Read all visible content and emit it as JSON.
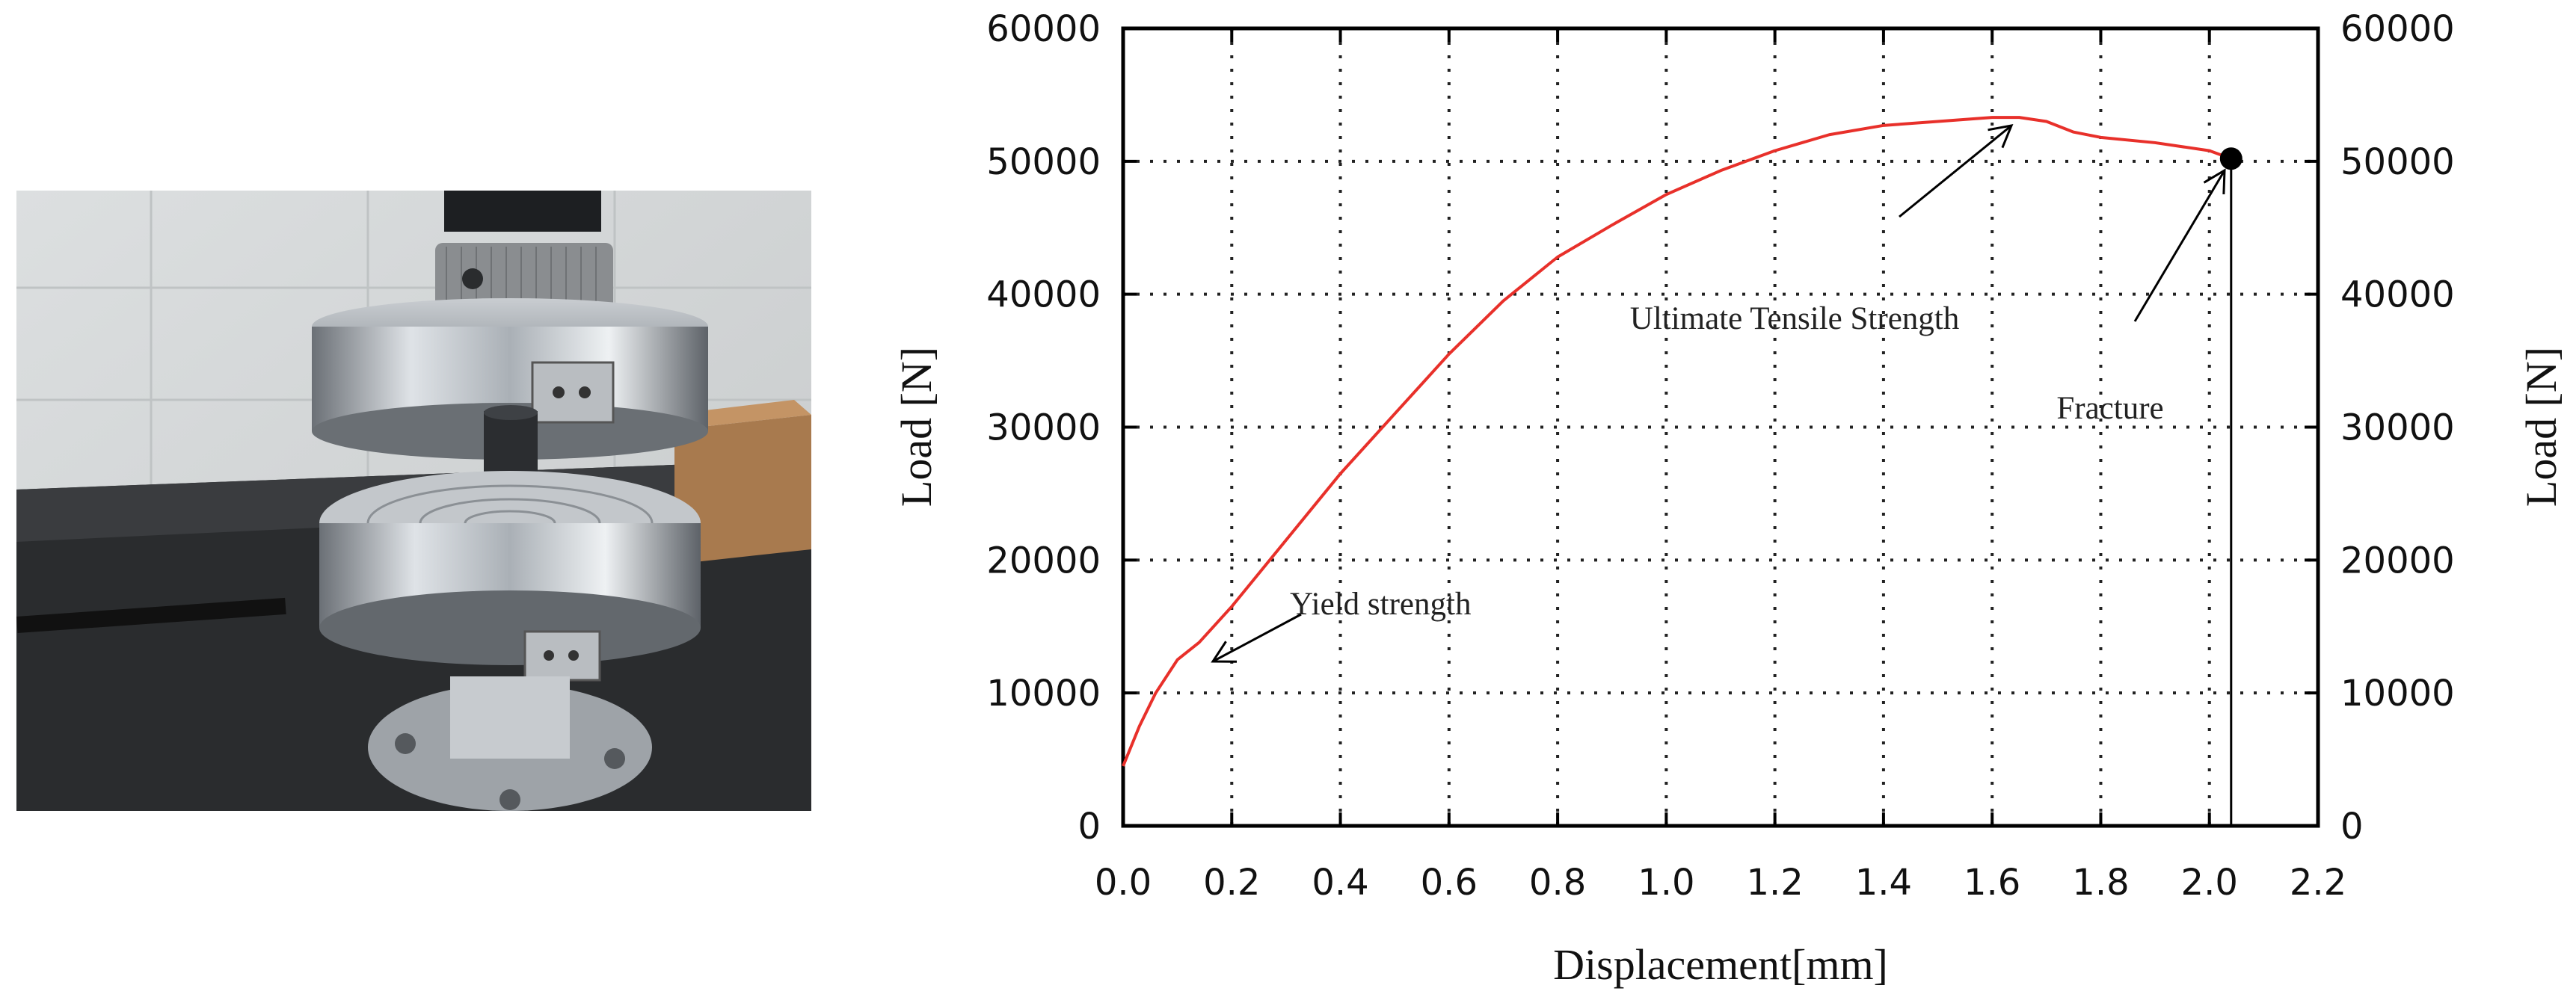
{
  "photo": {
    "description_icon": "compression-test-machine-photo"
  },
  "chart_data": {
    "type": "line",
    "xlabel": "Displacement[mm]",
    "ylabel": "Load [N]",
    "ylabel_right": "Load [N]",
    "xlim": [
      0.0,
      2.2
    ],
    "ylim": [
      0,
      60000
    ],
    "xticks": [
      "0.0",
      "0.2",
      "0.4",
      "0.6",
      "0.8",
      "1.0",
      "1.2",
      "1.4",
      "1.6",
      "1.8",
      "2.0",
      "2.2"
    ],
    "yticks": [
      "0",
      "10000",
      "20000",
      "30000",
      "40000",
      "50000",
      "60000"
    ],
    "grid": true,
    "line_color": "#e8302a",
    "series": [
      {
        "x": [
          0.0,
          0.03,
          0.06,
          0.1,
          0.14,
          0.2,
          0.3,
          0.4,
          0.5,
          0.6,
          0.7,
          0.8,
          0.9,
          1.0,
          1.1,
          1.2,
          1.3,
          1.4,
          1.5,
          1.6,
          1.65,
          1.7,
          1.75,
          1.8,
          1.9,
          2.0,
          2.04
        ],
        "y": [
          4500,
          7500,
          10000,
          12500,
          13800,
          16500,
          21500,
          26500,
          31000,
          35500,
          39500,
          42800,
          45200,
          47500,
          49300,
          50800,
          52000,
          52700,
          53000,
          53300,
          53300,
          53000,
          52200,
          51800,
          51400,
          50800,
          50200
        ]
      }
    ],
    "fracture_point": {
      "x": 2.04,
      "y": 50200
    },
    "annotations": [
      {
        "text": "Yield strength",
        "x": 0.18,
        "y": 14000
      },
      {
        "text": "Ultimate Tensile Strength",
        "x": 1.62,
        "y": 52800
      },
      {
        "text": "Fracture",
        "x": 2.04,
        "y": 50200
      }
    ]
  }
}
